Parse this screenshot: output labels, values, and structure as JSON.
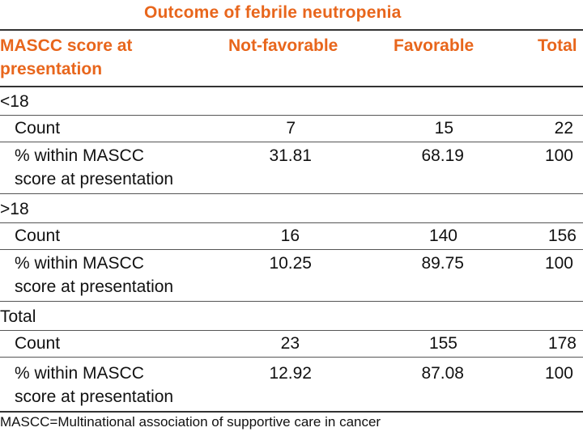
{
  "table": {
    "title": "Outcome of febrile neutropenia",
    "header": {
      "row_label_line1": "MASCC score at",
      "row_label_line2": "presentation",
      "col1": "Not-favorable",
      "col2": "Favorable",
      "col3": "Total"
    },
    "groups": [
      {
        "label": "<18",
        "count_label": "Count",
        "count": [
          "7",
          "15",
          "22"
        ],
        "pct_label_line1": "% within MASCC",
        "pct_label_line2": "score at presentation",
        "pct": [
          "31.81",
          "68.19",
          "100"
        ]
      },
      {
        "label": ">18",
        "count_label": "Count",
        "count": [
          "16",
          "140",
          "156"
        ],
        "pct_label_line1": "% within MASCC",
        "pct_label_line2": "score at presentation",
        "pct": [
          "10.25",
          "89.75",
          "100"
        ]
      },
      {
        "label": "Total",
        "count_label": "Count",
        "count": [
          "23",
          "155",
          "178"
        ],
        "pct_label_line1": "% within MASCC",
        "pct_label_line2": "score at presentation",
        "pct": [
          "12.92",
          "87.08",
          "100"
        ]
      }
    ],
    "footnote": "MASCC=Multinational association of supportive care in cancer"
  }
}
